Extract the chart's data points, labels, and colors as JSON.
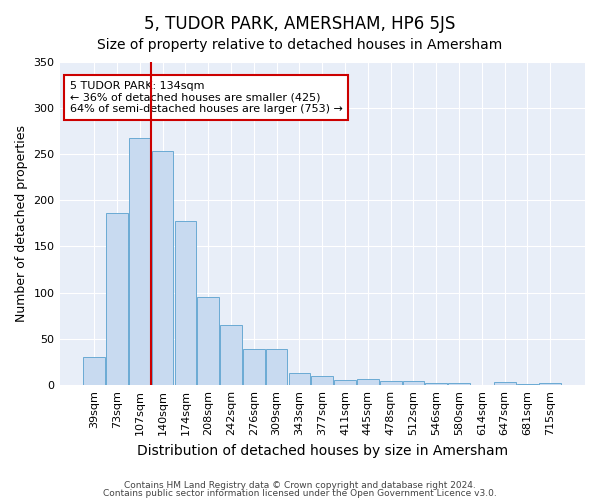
{
  "title": "5, TUDOR PARK, AMERSHAM, HP6 5JS",
  "subtitle": "Size of property relative to detached houses in Amersham",
  "xlabel": "Distribution of detached houses by size in Amersham",
  "ylabel": "Number of detached properties",
  "categories": [
    "39sqm",
    "73sqm",
    "107sqm",
    "140sqm",
    "174sqm",
    "208sqm",
    "242sqm",
    "276sqm",
    "309sqm",
    "343sqm",
    "377sqm",
    "411sqm",
    "445sqm",
    "478sqm",
    "512sqm",
    "546sqm",
    "580sqm",
    "614sqm",
    "647sqm",
    "681sqm",
    "715sqm"
  ],
  "values": [
    30,
    186,
    267,
    253,
    178,
    95,
    65,
    39,
    39,
    13,
    10,
    6,
    7,
    5,
    4,
    2,
    2,
    0,
    3,
    1,
    2
  ],
  "bar_color": "#c8daf0",
  "bar_edge_color": "#6aaad4",
  "vline_x_index": 3,
  "vline_color": "#cc0000",
  "annotation_text": "5 TUDOR PARK: 134sqm\n← 36% of detached houses are smaller (425)\n64% of semi-detached houses are larger (753) →",
  "annotation_box_edge_color": "#cc0000",
  "ylim": [
    0,
    350
  ],
  "yticks": [
    0,
    50,
    100,
    150,
    200,
    250,
    300,
    350
  ],
  "background_color": "#ffffff",
  "plot_background_color": "#e8eef8",
  "grid_color": "#ffffff",
  "footer_line1": "Contains HM Land Registry data © Crown copyright and database right 2024.",
  "footer_line2": "Contains public sector information licensed under the Open Government Licence v3.0.",
  "title_fontsize": 12,
  "subtitle_fontsize": 10,
  "xlabel_fontsize": 10,
  "ylabel_fontsize": 9,
  "tick_fontsize": 8,
  "annotation_fontsize": 8
}
